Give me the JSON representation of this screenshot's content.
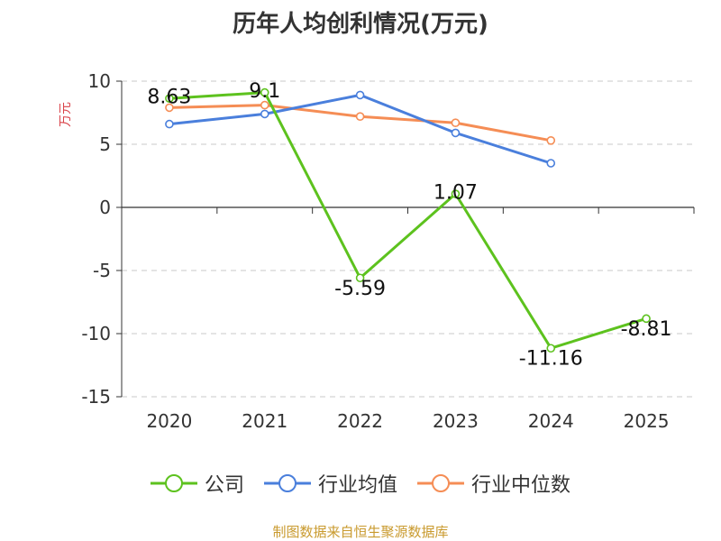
{
  "chart_data": {
    "type": "line",
    "title": "历年人均创利情况(万元)",
    "ylabel": "万元",
    "xlabel": "",
    "x": [
      "2020",
      "2021",
      "2022",
      "2023",
      "2024",
      "2025"
    ],
    "ylim": [
      -15,
      10
    ],
    "yticks": [
      10,
      5,
      0,
      -5,
      -10,
      -15
    ],
    "grid": true,
    "legend_placement": "bottom",
    "series": [
      {
        "name": "公司",
        "color": "#5dc21e",
        "values": [
          8.63,
          9.1,
          -5.59,
          1.07,
          -11.16,
          -8.81
        ],
        "show_labels": true
      },
      {
        "name": "行业均值",
        "color": "#4a7fdc",
        "values": [
          6.6,
          7.4,
          8.9,
          5.9,
          3.5,
          null
        ],
        "show_labels": false
      },
      {
        "name": "行业中位数",
        "color": "#f58d55",
        "values": [
          7.9,
          8.1,
          7.2,
          6.7,
          5.3,
          null
        ],
        "show_labels": false
      }
    ]
  },
  "source": "制图数据来自恒生聚源数据库"
}
